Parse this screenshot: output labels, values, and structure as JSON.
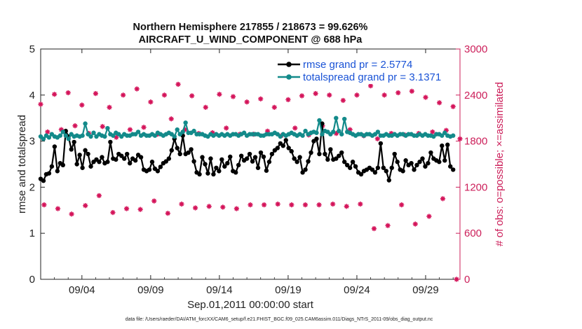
{
  "chart_data": {
    "type": "line",
    "title_line1": "Northern Hemisphere 217855 / 218673 = 99.626%",
    "title_line2": "AIRCRAFT_U_WIND_COMPONENT @ 688 hPa",
    "xlabel": "Sep.01,2011 00:00:00 start",
    "ylabel_left": "rmse and totalspread",
    "ylabel_right": "# of obs: o=possible; ×=assimilated",
    "footnote": "data file: /Users/raeder/DAI/ATM_forcXX/CAM6_setup/f.e21.FHIST_BGC.f09_025.CAM6assim.011/Diags_NTrS_2011-09/obs_diag_output.nc",
    "xlim": [
      0,
      30.5
    ],
    "ylim_left": [
      0,
      5
    ],
    "ylim_right": [
      0,
      3000
    ],
    "x_tick_positions": [
      3,
      8,
      13,
      18,
      23,
      28
    ],
    "x_tick_labels": [
      "09/04",
      "09/09",
      "09/14",
      "09/19",
      "09/24",
      "09/29"
    ],
    "y_left_ticks": [
      "0",
      "1",
      "2",
      "3",
      "4",
      "5"
    ],
    "y_right_ticks": [
      "0",
      "600",
      "1200",
      "1800",
      "2400",
      "3000"
    ],
    "legend": [
      {
        "name": "rmse grand pr = 2.5774",
        "color": "#000000"
      },
      {
        "name": "totalspread grand pr = 3.1371",
        "color": "#138a8a"
      }
    ],
    "series": [
      {
        "name": "rmse",
        "color": "#000000",
        "axis": "left",
        "values": [
          2.18,
          2.14,
          2.28,
          2.3,
          2.45,
          2.88,
          2.35,
          2.52,
          2.48,
          3.22,
          3.1,
          2.82,
          2.98,
          2.5,
          2.7,
          2.42,
          2.8,
          2.72,
          2.45,
          2.55,
          2.6,
          2.55,
          2.65,
          2.52,
          2.55,
          2.98,
          2.62,
          2.6,
          2.72,
          2.68,
          2.62,
          2.72,
          2.52,
          2.62,
          2.58,
          2.7,
          2.65,
          2.38,
          2.35,
          2.38,
          2.55,
          2.4,
          2.35,
          2.44,
          2.52,
          2.56,
          2.62,
          2.8,
          3.05,
          2.85,
          2.72,
          3.12,
          2.72,
          2.75,
          2.82,
          2.56,
          2.32,
          2.28,
          2.65,
          2.5,
          2.3,
          2.62,
          2.28,
          2.42,
          2.35,
          2.6,
          2.45,
          2.52,
          2.66,
          2.35,
          2.32,
          2.48,
          2.68,
          2.58,
          2.62,
          2.72,
          2.56,
          2.65,
          2.42,
          2.75,
          2.66,
          2.36,
          2.55,
          2.72,
          2.8,
          2.85,
          2.95,
          2.9,
          3.02,
          2.85,
          2.78,
          2.62,
          2.55,
          2.65,
          2.32,
          2.38,
          2.56,
          2.75,
          3.0,
          3.05,
          2.72,
          3.38,
          2.72,
          2.6,
          2.82,
          2.6,
          2.62,
          2.68,
          2.75,
          2.55,
          2.48,
          2.42,
          2.55,
          2.45,
          2.32,
          2.28,
          2.35,
          2.38,
          2.42,
          2.38,
          2.32,
          2.42,
          2.95,
          2.42,
          2.35,
          2.15,
          2.42,
          2.72,
          2.55,
          2.38,
          2.35,
          2.58,
          2.48,
          2.52,
          2.38,
          2.48,
          2.55,
          2.62,
          2.45,
          2.52,
          2.75,
          2.62,
          2.58,
          2.55,
          2.9,
          2.58,
          2.92,
          2.45,
          2.38
        ]
      },
      {
        "name": "totalspread",
        "color": "#138a8a",
        "axis": "left",
        "values": [
          3.1,
          3.05,
          3.12,
          3.08,
          3.15,
          3.1,
          3.08,
          3.12,
          3.2,
          3.12,
          3.05,
          3.15,
          3.1,
          3.12,
          3.1,
          3.12,
          3.38,
          3.15,
          3.1,
          3.18,
          3.1,
          3.15,
          3.12,
          3.1,
          3.28,
          3.15,
          3.12,
          3.18,
          3.15,
          3.1,
          3.15,
          3.12,
          3.12,
          3.15,
          3.15,
          3.2,
          3.12,
          3.15,
          3.12,
          3.12,
          3.15,
          3.12,
          3.18,
          3.15,
          3.12,
          3.15,
          3.18,
          3.15,
          3.1,
          3.25,
          3.15,
          3.2,
          3.4,
          3.18,
          3.18,
          3.22,
          3.15,
          3.15,
          3.15,
          3.12,
          3.1,
          3.15,
          3.12,
          3.15,
          3.12,
          3.15,
          3.12,
          3.15,
          3.12,
          3.15,
          3.15,
          3.12,
          3.15,
          3.18,
          3.12,
          3.15,
          3.15,
          3.15,
          3.15,
          3.12,
          3.12,
          3.15,
          3.15,
          3.15,
          3.18,
          3.15,
          3.1,
          3.15,
          3.12,
          3.15,
          3.18,
          3.15,
          3.12,
          3.15,
          3.12,
          3.22,
          3.15,
          3.18,
          3.2,
          3.18,
          3.45,
          3.15,
          3.22,
          3.2,
          3.15,
          3.2,
          3.5,
          3.22,
          3.15,
          3.48,
          3.2,
          3.18,
          3.15,
          3.12,
          3.15,
          3.15,
          3.12,
          3.15,
          3.15,
          3.12,
          3.15,
          3.2,
          3.12,
          3.12,
          3.15,
          3.12,
          3.12,
          3.15,
          3.12,
          3.15,
          3.15,
          3.12,
          3.15,
          3.15,
          3.12,
          3.12,
          3.15,
          3.12,
          3.15,
          3.12,
          3.12,
          3.1,
          3.15,
          3.15,
          3.12,
          3.18,
          3.12,
          3.1,
          3.12
        ]
      }
    ],
    "obs_counts_assimilated_00Z": [
      2280,
      2410,
      2430,
      2270,
      2420,
      2240,
      2400,
      2480,
      2310,
      2400,
      2540,
      2390,
      2240,
      2410,
      2380,
      2310,
      2350,
      2240,
      2340,
      2390,
      2420,
      2400,
      2330,
      2400,
      2520,
      2400,
      2430,
      2450,
      2370,
      2300,
      2250
    ],
    "obs_counts_assimilated_12Z": [
      1920,
      1950,
      2000,
      1900,
      1990,
      1850,
      1950,
      1980,
      1890,
      2090,
      1950,
      1900,
      1910,
      1970,
      1890,
      1890,
      1930,
      1870,
      1970,
      1880,
      2000,
      1900,
      1950,
      1870,
      1830,
      1900,
      1880,
      1900,
      1920,
      1940,
      1830
    ],
    "obs_counts_assimilated_lower": [
      970,
      920,
      850,
      960,
      1090,
      870,
      920,
      910,
      1020,
      860,
      980,
      930,
      950,
      940,
      920,
      970,
      970,
      980,
      970,
      970,
      970,
      980,
      950,
      980,
      660,
      700,
      970,
      720,
      820,
      1050,
      0
    ]
  }
}
